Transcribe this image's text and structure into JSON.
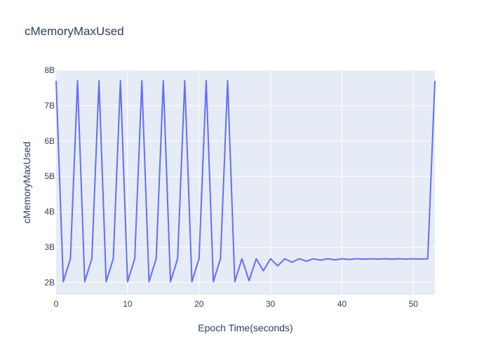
{
  "chart_data": {
    "type": "line",
    "title": "cMemoryMaxUsed",
    "xlabel": "Epoch Time(seconds)",
    "ylabel": "cMemoryMaxUsed",
    "xlim": [
      0,
      53
    ],
    "ylim": [
      1.65,
      8.0
    ],
    "xticks": [
      0,
      10,
      20,
      30,
      40,
      50
    ],
    "xtick_labels": [
      "0",
      "10",
      "20",
      "30",
      "40",
      "50"
    ],
    "yticks": [
      2,
      3,
      4,
      5,
      6,
      7,
      8
    ],
    "ytick_labels": [
      "2B",
      "3B",
      "4B",
      "5B",
      "6B",
      "7B",
      "8B"
    ],
    "grid": true,
    "colors": {
      "plot_bg": "#e5ecf6",
      "line": "#636efa",
      "text": "#2a3f5f"
    },
    "series": [
      {
        "x": [
          0,
          1,
          2,
          3,
          4,
          5,
          6,
          7,
          8,
          9,
          10,
          11,
          12,
          13,
          14,
          15,
          16,
          17,
          18,
          19,
          20,
          21,
          22,
          23,
          24,
          25,
          26,
          27,
          28,
          29,
          30,
          31,
          32,
          33,
          34,
          35,
          36,
          37,
          38,
          39,
          40,
          41,
          42,
          43,
          44,
          45,
          46,
          47,
          48,
          49,
          50,
          51,
          52,
          53
        ],
        "values": [
          7.7,
          2.02,
          2.67,
          7.7,
          2.02,
          2.67,
          7.7,
          2.02,
          2.67,
          7.7,
          2.02,
          2.67,
          7.7,
          2.02,
          2.67,
          7.7,
          2.02,
          2.67,
          7.7,
          2.02,
          2.67,
          7.7,
          2.02,
          2.67,
          7.7,
          2.02,
          2.67,
          2.05,
          2.67,
          2.33,
          2.67,
          2.47,
          2.67,
          2.57,
          2.67,
          2.6,
          2.67,
          2.63,
          2.67,
          2.64,
          2.67,
          2.65,
          2.67,
          2.66,
          2.67,
          2.66,
          2.67,
          2.66,
          2.67,
          2.66,
          2.67,
          2.66,
          2.67,
          7.7
        ]
      }
    ]
  }
}
